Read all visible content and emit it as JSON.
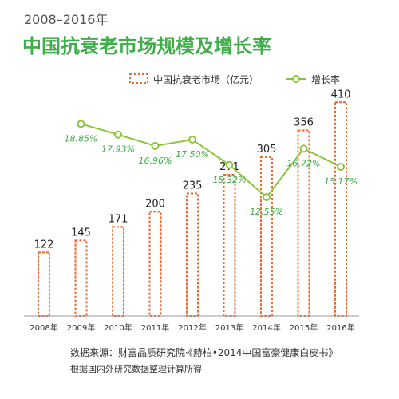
{
  "chart_data": {
    "type": "bar",
    "subtitle": "2008–2016年",
    "title": "中国抗衰老市场规模及增长率",
    "categories": [
      "2008年",
      "2009年",
      "2010年",
      "2011年",
      "2012年",
      "2013年",
      "2014年",
      "2015年",
      "2016年"
    ],
    "series": [
      {
        "name": "中国抗衰老市场（亿元）",
        "type": "bar",
        "values": [
          122,
          145,
          171,
          200,
          235,
          271,
          305,
          356,
          410
        ],
        "labels": [
          "122",
          "145",
          "171",
          "200",
          "235",
          "271",
          "305",
          "356",
          "410"
        ],
        "color": "#f0642d"
      },
      {
        "name": "增长率",
        "type": "line",
        "x": [
          "2009年",
          "2010年",
          "2011年",
          "2012年",
          "2013年",
          "2014年",
          "2015年",
          "2016年"
        ],
        "values": [
          18.85,
          17.93,
          16.96,
          17.5,
          15.32,
          12.55,
          16.72,
          15.17
        ],
        "labels": [
          "18.85%",
          "17.93%",
          "16.96%",
          "17.50%",
          "15.32%",
          "12.55%",
          "16.72%",
          "15.17%"
        ],
        "color": "#8cc63f"
      }
    ],
    "legend_position": "top-right",
    "grid": false,
    "bar_ylim": [
      0,
      460
    ],
    "line_ylim": [
      7,
      21
    ],
    "source_line1": "数据来源：财富品质研究院·《赫柏•2014中国富豪健康白皮书》",
    "source_line2": "根据国内外研究数据整理计算所得"
  },
  "colors": {
    "title": "#3fae49",
    "subtitle": "#555555",
    "bar_stroke": "#f0642d",
    "line": "#8cc63f",
    "line_label": "#3fae49",
    "text": "#333333",
    "axis": "#999999"
  }
}
